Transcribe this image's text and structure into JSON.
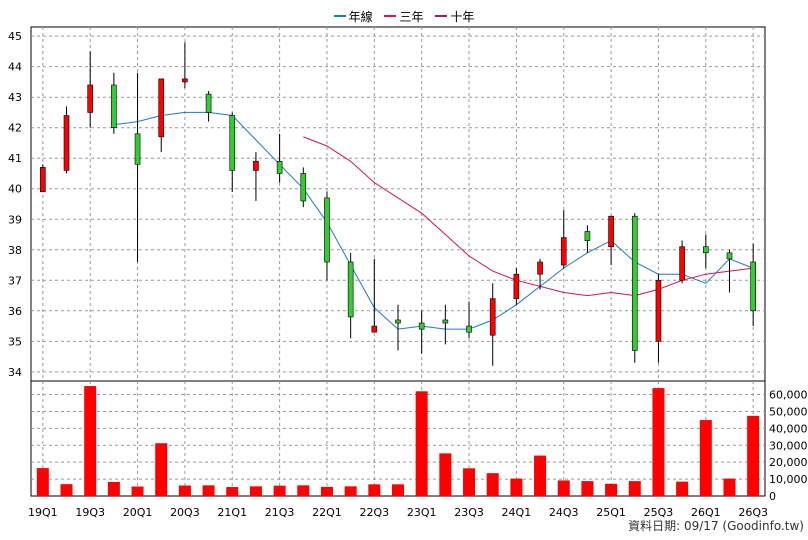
{
  "legend": [
    {
      "label": "年線",
      "color": "#1f77d4"
    },
    {
      "label": "三年",
      "color": "#d4145a"
    },
    {
      "label": "十年",
      "color": "#9e1f63"
    }
  ],
  "footer": "資料日期: 09/17  (Goodinfo.tw)",
  "chart_data": [
    {
      "type": "candlestick",
      "title": "",
      "ylim": [
        33.7,
        45.3
      ],
      "y_ticks": [
        34,
        35,
        36,
        37,
        38,
        39,
        40,
        41,
        42,
        43,
        44,
        45
      ],
      "x_tick_labels": [
        "19Q1",
        "19Q3",
        "20Q1",
        "20Q3",
        "21Q1",
        "21Q3",
        "22Q1",
        "22Q3",
        "23Q1",
        "23Q3",
        "24Q1",
        "24Q3",
        "25Q1",
        "25Q3",
        "26Q1",
        "26Q3"
      ],
      "grid": true,
      "up_color": "#ff0000",
      "down_color": "#33cc33",
      "candles": [
        {
          "open": 39.9,
          "close": 40.7,
          "high": 40.8,
          "low": 39.9
        },
        {
          "open": 40.6,
          "close": 42.4,
          "high": 42.7,
          "low": 40.5
        },
        {
          "open": 42.5,
          "close": 43.4,
          "high": 44.5,
          "low": 42.0
        },
        {
          "open": 43.4,
          "close": 42.0,
          "high": 43.8,
          "low": 41.8
        },
        {
          "open": 41.8,
          "close": 40.8,
          "high": 43.8,
          "low": 37.6
        },
        {
          "open": 41.7,
          "close": 43.6,
          "high": 43.6,
          "low": 41.2
        },
        {
          "open": 43.5,
          "close": 43.6,
          "high": 44.8,
          "low": 43.3
        },
        {
          "open": 43.1,
          "close": 42.5,
          "high": 43.2,
          "low": 42.2
        },
        {
          "open": 42.4,
          "close": 40.6,
          "high": 42.5,
          "low": 39.9
        },
        {
          "open": 40.6,
          "close": 40.9,
          "high": 41.2,
          "low": 39.6
        },
        {
          "open": 40.9,
          "close": 40.5,
          "high": 41.8,
          "low": 40.2
        },
        {
          "open": 40.5,
          "close": 39.6,
          "high": 40.7,
          "low": 39.4
        },
        {
          "open": 39.7,
          "close": 37.6,
          "high": 39.9,
          "low": 37.0
        },
        {
          "open": 37.6,
          "close": 35.8,
          "high": 37.9,
          "low": 35.1
        },
        {
          "open": 35.3,
          "close": 35.5,
          "high": 37.7,
          "low": 35.3
        },
        {
          "open": 35.7,
          "close": 35.6,
          "high": 36.2,
          "low": 34.7
        },
        {
          "open": 35.6,
          "close": 35.4,
          "high": 36.0,
          "low": 34.6
        },
        {
          "open": 35.7,
          "close": 35.6,
          "high": 36.2,
          "low": 34.9
        },
        {
          "open": 35.5,
          "close": 35.3,
          "high": 36.3,
          "low": 35.1
        },
        {
          "open": 35.2,
          "close": 36.4,
          "high": 36.9,
          "low": 34.2
        },
        {
          "open": 36.4,
          "close": 37.2,
          "high": 37.4,
          "low": 36.2
        },
        {
          "open": 37.2,
          "close": 37.6,
          "high": 37.7,
          "low": 36.7
        },
        {
          "open": 37.5,
          "close": 38.4,
          "high": 39.3,
          "low": 37.4
        },
        {
          "open": 38.6,
          "close": 38.3,
          "high": 38.8,
          "low": 37.9
        },
        {
          "open": 38.1,
          "close": 39.1,
          "high": 39.1,
          "low": 37.5
        },
        {
          "open": 39.1,
          "close": 34.7,
          "high": 39.2,
          "low": 34.3
        },
        {
          "open": 35.0,
          "close": 37.0,
          "high": 37.2,
          "low": 34.3
        },
        {
          "open": 37.0,
          "close": 38.1,
          "high": 38.3,
          "low": 36.9
        },
        {
          "open": 38.1,
          "close": 37.9,
          "high": 38.5,
          "low": 37.4
        },
        {
          "open": 37.9,
          "close": 37.7,
          "high": 38.0,
          "low": 36.6
        },
        {
          "open": 37.6,
          "close": 36.0,
          "high": 38.2,
          "low": 35.5
        }
      ],
      "series": [
        {
          "name": "年線",
          "color": "#1f77d4",
          "values": [
            null,
            null,
            null,
            42.1,
            42.2,
            42.4,
            42.5,
            42.5,
            42.4,
            41.6,
            40.8,
            40.0,
            38.9,
            37.5,
            36.1,
            35.4,
            35.5,
            35.4,
            35.4,
            35.7,
            36.2,
            36.8,
            37.4,
            37.9,
            38.3,
            37.6,
            37.2,
            37.2,
            36.9,
            37.7,
            37.4
          ]
        },
        {
          "name": "三年",
          "color": "#d4145a",
          "values": [
            null,
            null,
            null,
            null,
            null,
            null,
            null,
            null,
            null,
            null,
            null,
            41.7,
            41.4,
            40.9,
            40.2,
            39.7,
            39.2,
            38.5,
            37.8,
            37.3,
            37.0,
            36.8,
            36.6,
            36.5,
            36.6,
            36.5,
            36.7,
            37.0,
            37.2,
            37.3,
            37.4
          ]
        }
      ],
      "volume": {
        "ylim": [
          0,
          68000
        ],
        "y_ticks": [
          0,
          10000,
          20000,
          30000,
          40000,
          50000,
          60000
        ],
        "y_tick_labels": [
          "0",
          "10,000",
          "20,000",
          "30,000",
          "40,000",
          "50,000",
          "60,000"
        ],
        "values": [
          16500,
          7000,
          65000,
          8300,
          5600,
          31200,
          6200,
          6300,
          5300,
          5700,
          6100,
          6300,
          5400,
          5700,
          6900,
          6900,
          61900,
          25200,
          16400,
          13500,
          10300,
          23900,
          9200,
          8800,
          7200,
          8800,
          63800,
          8500,
          44900,
          10300,
          47400
        ]
      }
    }
  ]
}
